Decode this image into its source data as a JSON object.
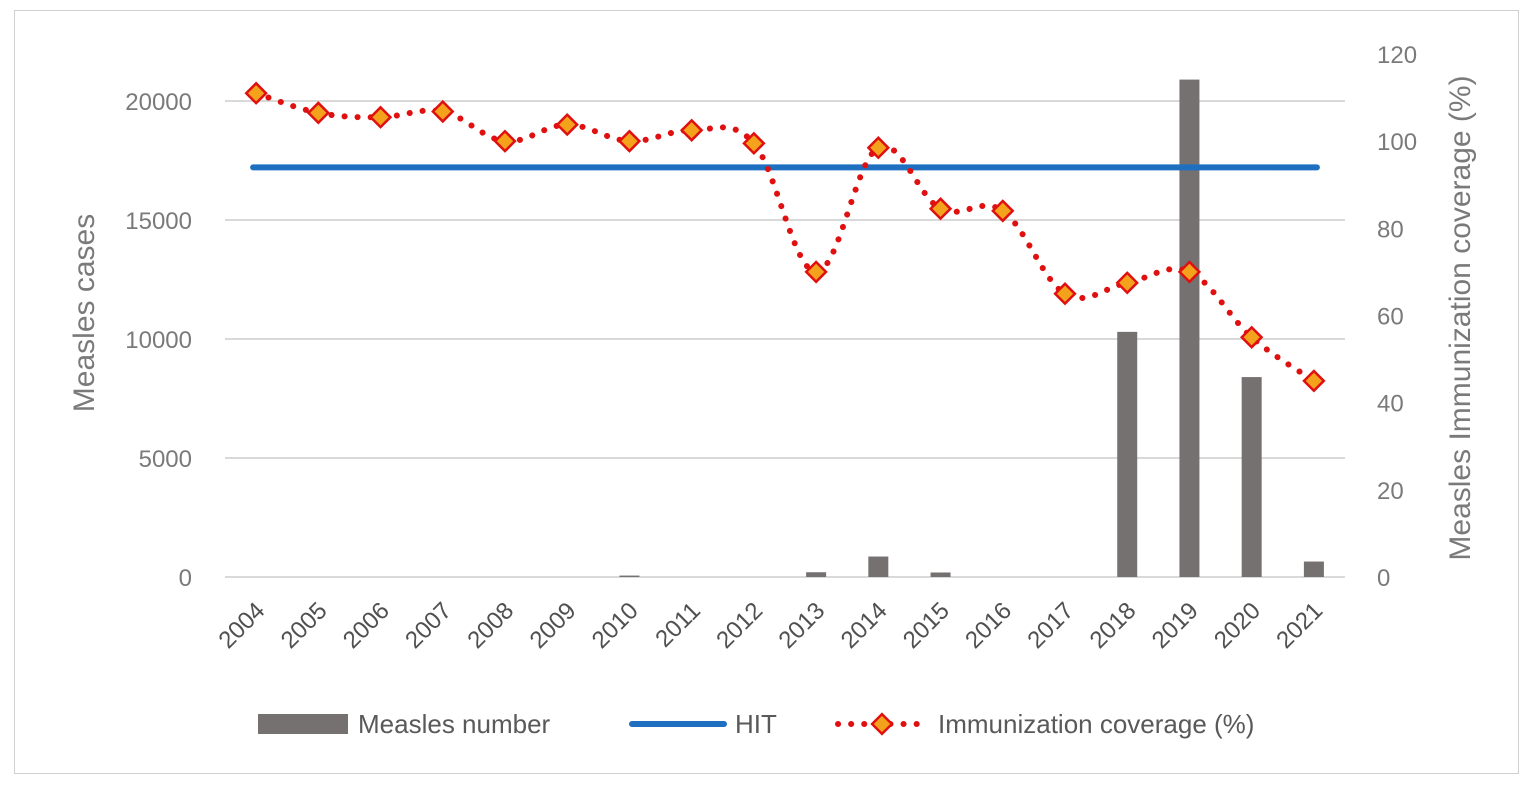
{
  "chart_data": {
    "type": "bar+line",
    "categories": [
      "2004",
      "2005",
      "2006",
      "2007",
      "2008",
      "2009",
      "2010",
      "2011",
      "2012",
      "2013",
      "2014",
      "2015",
      "2016",
      "2017",
      "2018",
      "2019",
      "2020",
      "2021"
    ],
    "series": [
      {
        "name": "Measles number",
        "type": "bar",
        "axis": "left",
        "color": "#767171",
        "values": [
          0,
          0,
          0,
          0,
          0,
          0,
          60,
          0,
          0,
          200,
          860,
          190,
          0,
          0,
          10300,
          20900,
          8400,
          650
        ]
      },
      {
        "name": "HIT",
        "type": "line",
        "axis": "right",
        "color": "#1f6fc0",
        "values": [
          94,
          94,
          94,
          94,
          94,
          94,
          94,
          94,
          94,
          94,
          94,
          94,
          94,
          94,
          94,
          94,
          94,
          94
        ]
      },
      {
        "name": "Immunization coverage (%)",
        "type": "line",
        "axis": "right",
        "color": "#e01010",
        "marker_fill": "#f4a11c",
        "values": [
          111,
          106.5,
          105.5,
          106.8,
          100,
          103.8,
          100,
          102.5,
          99.5,
          70,
          98.5,
          84.5,
          84,
          65,
          67.5,
          70,
          55,
          45
        ]
      }
    ],
    "ylabel": "Measles cases",
    "y2label": "Measles Immunization coverage (%)",
    "ylim": [
      0,
      22000
    ],
    "y2lim": [
      0,
      120
    ],
    "yticks": [
      "0",
      "5000",
      "10000",
      "15000",
      "20000"
    ],
    "y2ticks": [
      "0",
      "20",
      "40",
      "60",
      "80",
      "100",
      "120"
    ],
    "grid": true,
    "legend_position": "bottom"
  }
}
